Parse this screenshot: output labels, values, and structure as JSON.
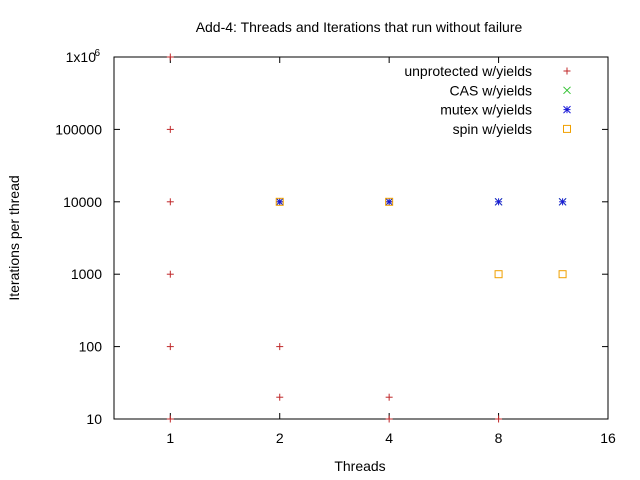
{
  "chart_data": {
    "type": "scatter",
    "title": "Add-4: Threads and Iterations that run without failure",
    "xlabel": "Threads",
    "ylabel": "Iterations per thread",
    "x_scale": "log2",
    "y_scale": "log10",
    "xlim": [
      0.7,
      16
    ],
    "ylim": [
      10,
      1000000
    ],
    "x_ticks": [
      1,
      2,
      4,
      8,
      16
    ],
    "x_tick_labels": [
      "1",
      "2",
      "4",
      "8",
      "16"
    ],
    "y_ticks": [
      10,
      100,
      1000,
      10000,
      100000,
      1000000
    ],
    "y_tick_labels": [
      "10",
      "100",
      "1000",
      "10000",
      "100000",
      "1x10"
    ],
    "y_top_exponent": "6",
    "grid": false,
    "legend_position": "top-right",
    "series": [
      {
        "name": "unprotected w/yields",
        "marker": "plus",
        "color": "#c0282a",
        "points": [
          {
            "x": 1,
            "y": 1000000
          },
          {
            "x": 1,
            "y": 100000
          },
          {
            "x": 1,
            "y": 10000
          },
          {
            "x": 1,
            "y": 1000
          },
          {
            "x": 1,
            "y": 100
          },
          {
            "x": 1,
            "y": 10
          },
          {
            "x": 2,
            "y": 10000
          },
          {
            "x": 2,
            "y": 100
          },
          {
            "x": 2,
            "y": 20
          },
          {
            "x": 4,
            "y": 10000
          },
          {
            "x": 4,
            "y": 20
          },
          {
            "x": 4,
            "y": 10
          },
          {
            "x": 8,
            "y": 10
          }
        ]
      },
      {
        "name": "CAS w/yields",
        "marker": "cross",
        "color": "#2ec02e",
        "points": [
          {
            "x": 2,
            "y": 10000
          },
          {
            "x": 4,
            "y": 10000
          },
          {
            "x": 8,
            "y": 10000
          },
          {
            "x": 12,
            "y": 10000
          }
        ]
      },
      {
        "name": "mutex w/yields",
        "marker": "star",
        "color": "#1a1ad8",
        "points": [
          {
            "x": 2,
            "y": 10000
          },
          {
            "x": 4,
            "y": 10000
          },
          {
            "x": 8,
            "y": 10000
          },
          {
            "x": 12,
            "y": 10000
          }
        ]
      },
      {
        "name": "spin w/yields",
        "marker": "square",
        "color": "#f0a000",
        "points": [
          {
            "x": 2,
            "y": 10000
          },
          {
            "x": 4,
            "y": 10000
          },
          {
            "x": 8,
            "y": 1000
          },
          {
            "x": 12,
            "y": 1000
          }
        ]
      }
    ]
  }
}
